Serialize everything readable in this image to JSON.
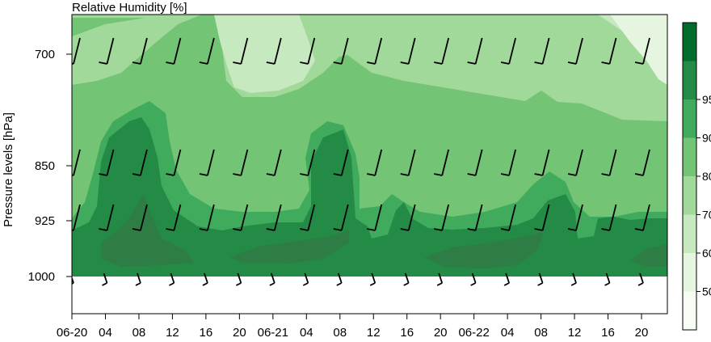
{
  "chart_data": {
    "type": "heatmap",
    "title": "Relative Humidity [%]",
    "ylabel": "Pressure levels [hPa]",
    "xlabel": "",
    "y_levels_hPa": [
      1000,
      925,
      850,
      700
    ],
    "y_ticks": [
      "700",
      "850",
      "925",
      "1000"
    ],
    "x_tick_labels": [
      "06-20",
      "04",
      "08",
      "12",
      "16",
      "20",
      "06-21",
      "04",
      "08",
      "12",
      "16",
      "20",
      "06-22",
      "04",
      "08",
      "12",
      "16",
      "20"
    ],
    "x_hours_since_start": [
      0,
      4,
      8,
      12,
      16,
      20,
      24,
      28,
      32,
      36,
      40,
      44,
      48,
      52,
      56,
      60,
      64,
      68
    ],
    "x_range_hours": [
      0,
      70
    ],
    "y_range_hPa": [
      1000,
      650
    ],
    "colorbar": {
      "ticks": [
        "50",
        "60",
        "70",
        "80",
        "90",
        "95"
      ],
      "levels": [
        40,
        50,
        60,
        70,
        80,
        90,
        95,
        100
      ],
      "colors": [
        "#f7fcf5",
        "#e5f5e0",
        "#c7e9c0",
        "#a1d99b",
        "#74c476",
        "#41ab5d",
        "#238b45",
        "#006d2c"
      ]
    },
    "rh_estimates": {
      "700": [
        78,
        80,
        82,
        83,
        84,
        70,
        68,
        72,
        82,
        78,
        74,
        72,
        70,
        68,
        66,
        62,
        58,
        55
      ],
      "850": [
        80,
        84,
        94,
        96,
        92,
        82,
        82,
        84,
        96,
        92,
        84,
        80,
        80,
        78,
        80,
        80,
        80,
        80
      ],
      "925": [
        92,
        94,
        98,
        96,
        92,
        88,
        86,
        90,
        96,
        92,
        94,
        90,
        90,
        92,
        96,
        92,
        90,
        90
      ],
      "1000": [
        88,
        92,
        98,
        98,
        96,
        94,
        96,
        98,
        96,
        94,
        94,
        96,
        96,
        96,
        94,
        92,
        94,
        96
      ]
    },
    "wind_barbs": {
      "hours": [
        0,
        4,
        8,
        12,
        16,
        20,
        24,
        28,
        32,
        36,
        40,
        44,
        48,
        52,
        56,
        60,
        64,
        68
      ],
      "levels_hPa": [
        700,
        850,
        925,
        1000
      ]
    }
  }
}
